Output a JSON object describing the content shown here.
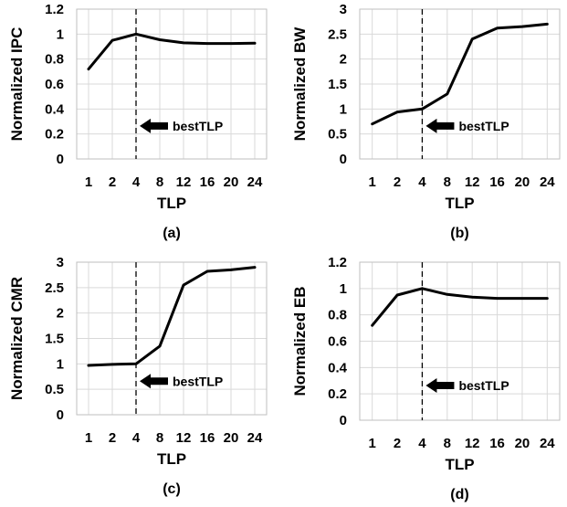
{
  "chart_data": [
    {
      "type": "line",
      "panel_label": "(a)",
      "xlabel": "TLP",
      "ylabel": "Normalized IPC",
      "categories": [
        "1",
        "2",
        "4",
        "8",
        "12",
        "16",
        "20",
        "24"
      ],
      "values": [
        0.72,
        0.95,
        1.0,
        0.955,
        0.93,
        0.925,
        0.925,
        0.927
      ],
      "ylim": [
        0,
        1.2
      ],
      "yticks": [
        "0",
        "0.2",
        "0.4",
        "0.6",
        "0.8",
        "1",
        "1.2"
      ],
      "grid": true,
      "marker_category": "4",
      "annotation": "bestTLP"
    },
    {
      "type": "line",
      "panel_label": "(b)",
      "xlabel": "TLP",
      "ylabel": "Normalized BW",
      "categories": [
        "1",
        "2",
        "4",
        "8",
        "12",
        "16",
        "20",
        "24"
      ],
      "values": [
        0.7,
        0.94,
        1.0,
        1.3,
        2.4,
        2.62,
        2.65,
        2.7
      ],
      "ylim": [
        0,
        3
      ],
      "yticks": [
        "0",
        "0.5",
        "1",
        "1.5",
        "2",
        "2.5",
        "3"
      ],
      "grid": true,
      "marker_category": "4",
      "annotation": "bestTLP"
    },
    {
      "type": "line",
      "panel_label": "(c)",
      "xlabel": "TLP",
      "ylabel": "Normalized CMR",
      "categories": [
        "1",
        "2",
        "4",
        "8",
        "12",
        "16",
        "20",
        "24"
      ],
      "values": [
        0.97,
        0.99,
        1.0,
        1.35,
        2.55,
        2.82,
        2.85,
        2.9
      ],
      "ylim": [
        0,
        3
      ],
      "yticks": [
        "0",
        "0.5",
        "1",
        "1.5",
        "2",
        "2.5",
        "3"
      ],
      "grid": true,
      "marker_category": "4",
      "annotation": "bestTLP"
    },
    {
      "type": "line",
      "panel_label": "(d)",
      "xlabel": "TLP",
      "ylabel": "Normalized EB",
      "categories": [
        "1",
        "2",
        "4",
        "8",
        "12",
        "16",
        "20",
        "24"
      ],
      "values": [
        0.72,
        0.95,
        1.0,
        0.955,
        0.935,
        0.925,
        0.925,
        0.925
      ],
      "ylim": [
        0,
        1.2
      ],
      "yticks": [
        "0",
        "0.2",
        "0.4",
        "0.6",
        "0.8",
        "1",
        "1.2"
      ],
      "grid": true,
      "marker_category": "4",
      "annotation": "bestTLP"
    }
  ]
}
